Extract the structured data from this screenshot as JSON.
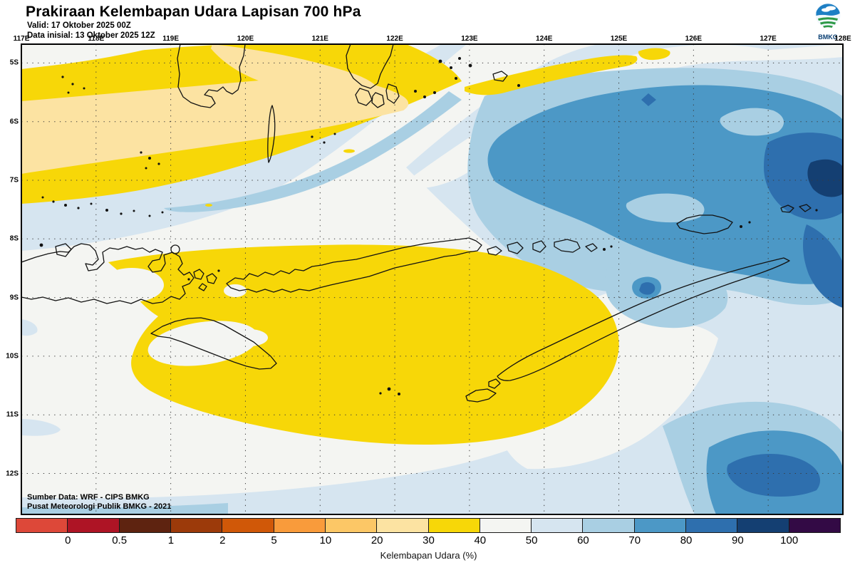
{
  "header": {
    "title": "Prakiraan Kelembapan Udara Lapisan 700 hPa",
    "valid": "Valid: 17 Oktober 2025 00Z",
    "init": "Data inisial: 13 Oktober 2025 12Z",
    "logo_text": "BMKG"
  },
  "map": {
    "lon_labels": [
      "117E",
      "118E",
      "119E",
      "120E",
      "121E",
      "122E",
      "123E",
      "124E",
      "125E",
      "126E",
      "127E",
      "128E"
    ],
    "lat_labels": [
      "5S",
      "6S",
      "7S",
      "8S",
      "9S",
      "10S",
      "11S",
      "12S"
    ],
    "source_line1": "Sumber Data: WRF - CIPS BMKG",
    "source_line2": "Pusat Meteorologi Publik BMKG - 2021"
  },
  "legend": {
    "title": "Kelembapan Udara (%)",
    "tick_labels": [
      "0",
      "0.5",
      "1",
      "2",
      "5",
      "10",
      "20",
      "30",
      "40",
      "50",
      "60",
      "70",
      "80",
      "90",
      "100"
    ],
    "segment_colors": [
      "#dd4839",
      "#ae1425",
      "#5e2310",
      "#9c3a0a",
      "#d05808",
      "#f99b3b",
      "#fcc766",
      "#fce3a2",
      "#f7d708",
      "#f4f5f2",
      "#d6e5f0",
      "#a9cfe3",
      "#4c98c6",
      "#2e6fae",
      "#143f72",
      "#330a45"
    ]
  },
  "palette": {
    "h20": "#fce3a2",
    "h30": "#f7d708",
    "h40": "#f4f5f2",
    "h50": "#d6e5f0",
    "h60": "#a9cfe3",
    "h70": "#4c98c6",
    "h80": "#2e6fae",
    "h90": "#143f72",
    "coast": "#121212"
  }
}
